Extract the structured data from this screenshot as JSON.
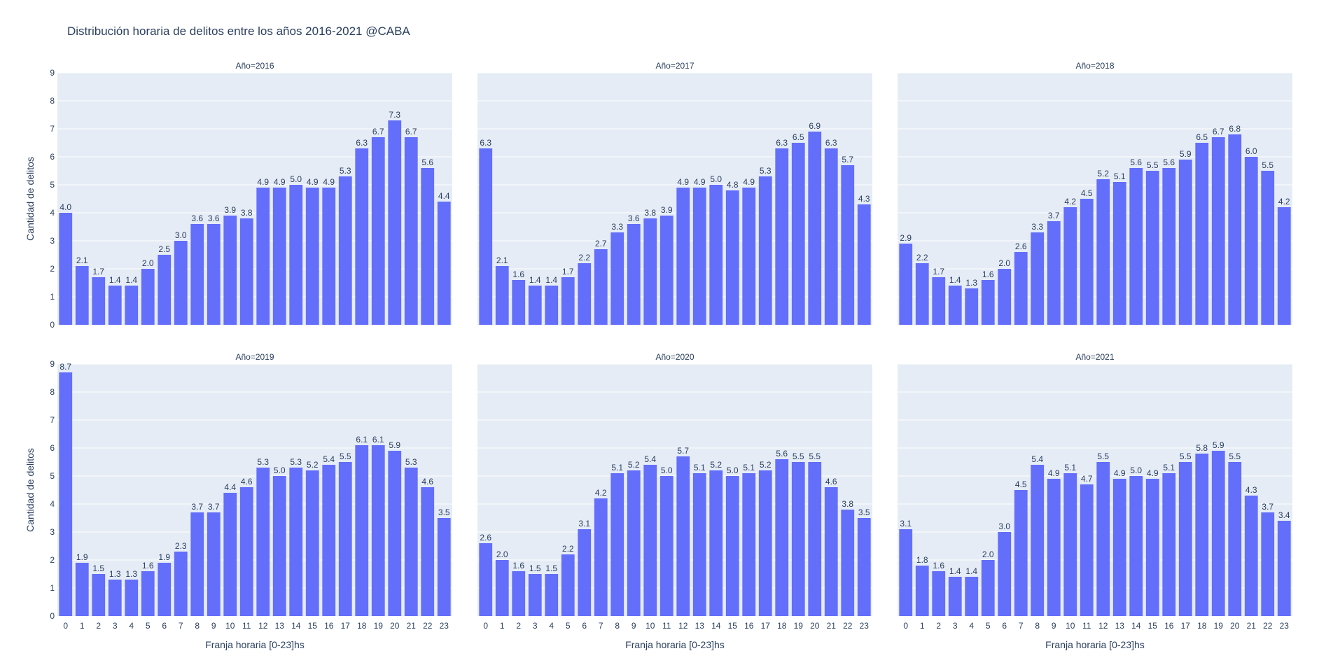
{
  "chart_data": {
    "type": "bar",
    "title": "Distribución horaria de delitos entre los años 2016-2021 @CABA",
    "xlabel": "Franja horaria [0-23]hs",
    "ylabel": "Cantidad de delitos",
    "ylim": [
      0,
      9
    ],
    "yticks": [
      0,
      1,
      2,
      3,
      4,
      5,
      6,
      7,
      8,
      9
    ],
    "grid": true,
    "bar_color": "#636efa",
    "plot_bg": "#e5ecf6",
    "categories": [
      "0",
      "1",
      "2",
      "3",
      "4",
      "5",
      "6",
      "7",
      "8",
      "9",
      "10",
      "11",
      "12",
      "13",
      "14",
      "15",
      "16",
      "17",
      "18",
      "19",
      "20",
      "21",
      "22",
      "23"
    ],
    "panels": [
      {
        "subtitle": "Año=2016",
        "values": [
          4.0,
          2.1,
          1.7,
          1.4,
          1.4,
          2.0,
          2.5,
          3.0,
          3.6,
          3.6,
          3.9,
          3.8,
          4.9,
          4.9,
          5.0,
          4.9,
          4.9,
          5.3,
          6.3,
          6.7,
          7.3,
          6.7,
          5.6,
          4.4
        ]
      },
      {
        "subtitle": "Año=2017",
        "values": [
          6.3,
          2.1,
          1.6,
          1.4,
          1.4,
          1.7,
          2.2,
          2.7,
          3.3,
          3.6,
          3.8,
          3.9,
          4.9,
          4.9,
          5.0,
          4.8,
          4.9,
          5.3,
          6.3,
          6.5,
          6.9,
          6.3,
          5.7,
          4.3
        ]
      },
      {
        "subtitle": "Año=2018",
        "values": [
          2.9,
          2.2,
          1.7,
          1.4,
          1.3,
          1.6,
          2.0,
          2.6,
          3.3,
          3.7,
          4.2,
          4.5,
          5.2,
          5.1,
          5.6,
          5.5,
          5.6,
          5.9,
          6.5,
          6.7,
          6.8,
          6.0,
          5.5,
          4.2
        ]
      },
      {
        "subtitle": "Año=2019",
        "values": [
          8.7,
          1.9,
          1.5,
          1.3,
          1.3,
          1.6,
          1.9,
          2.3,
          3.7,
          3.7,
          4.4,
          4.6,
          5.3,
          5.0,
          5.3,
          5.2,
          5.4,
          5.5,
          6.1,
          6.1,
          5.9,
          5.3,
          4.6,
          3.5
        ]
      },
      {
        "subtitle": "Año=2020",
        "values": [
          2.6,
          2.0,
          1.6,
          1.5,
          1.5,
          2.2,
          3.1,
          4.2,
          5.1,
          5.2,
          5.4,
          5.0,
          5.7,
          5.1,
          5.2,
          5.0,
          5.1,
          5.2,
          5.6,
          5.5,
          5.5,
          4.6,
          3.8,
          3.5
        ]
      },
      {
        "subtitle": "Año=2021",
        "values": [
          3.1,
          1.8,
          1.6,
          1.4,
          1.4,
          2.0,
          3.0,
          4.5,
          5.4,
          4.9,
          5.1,
          4.7,
          5.5,
          4.9,
          5.0,
          4.9,
          5.1,
          5.5,
          5.8,
          5.9,
          5.5,
          4.3,
          3.7,
          3.4
        ]
      }
    ]
  }
}
